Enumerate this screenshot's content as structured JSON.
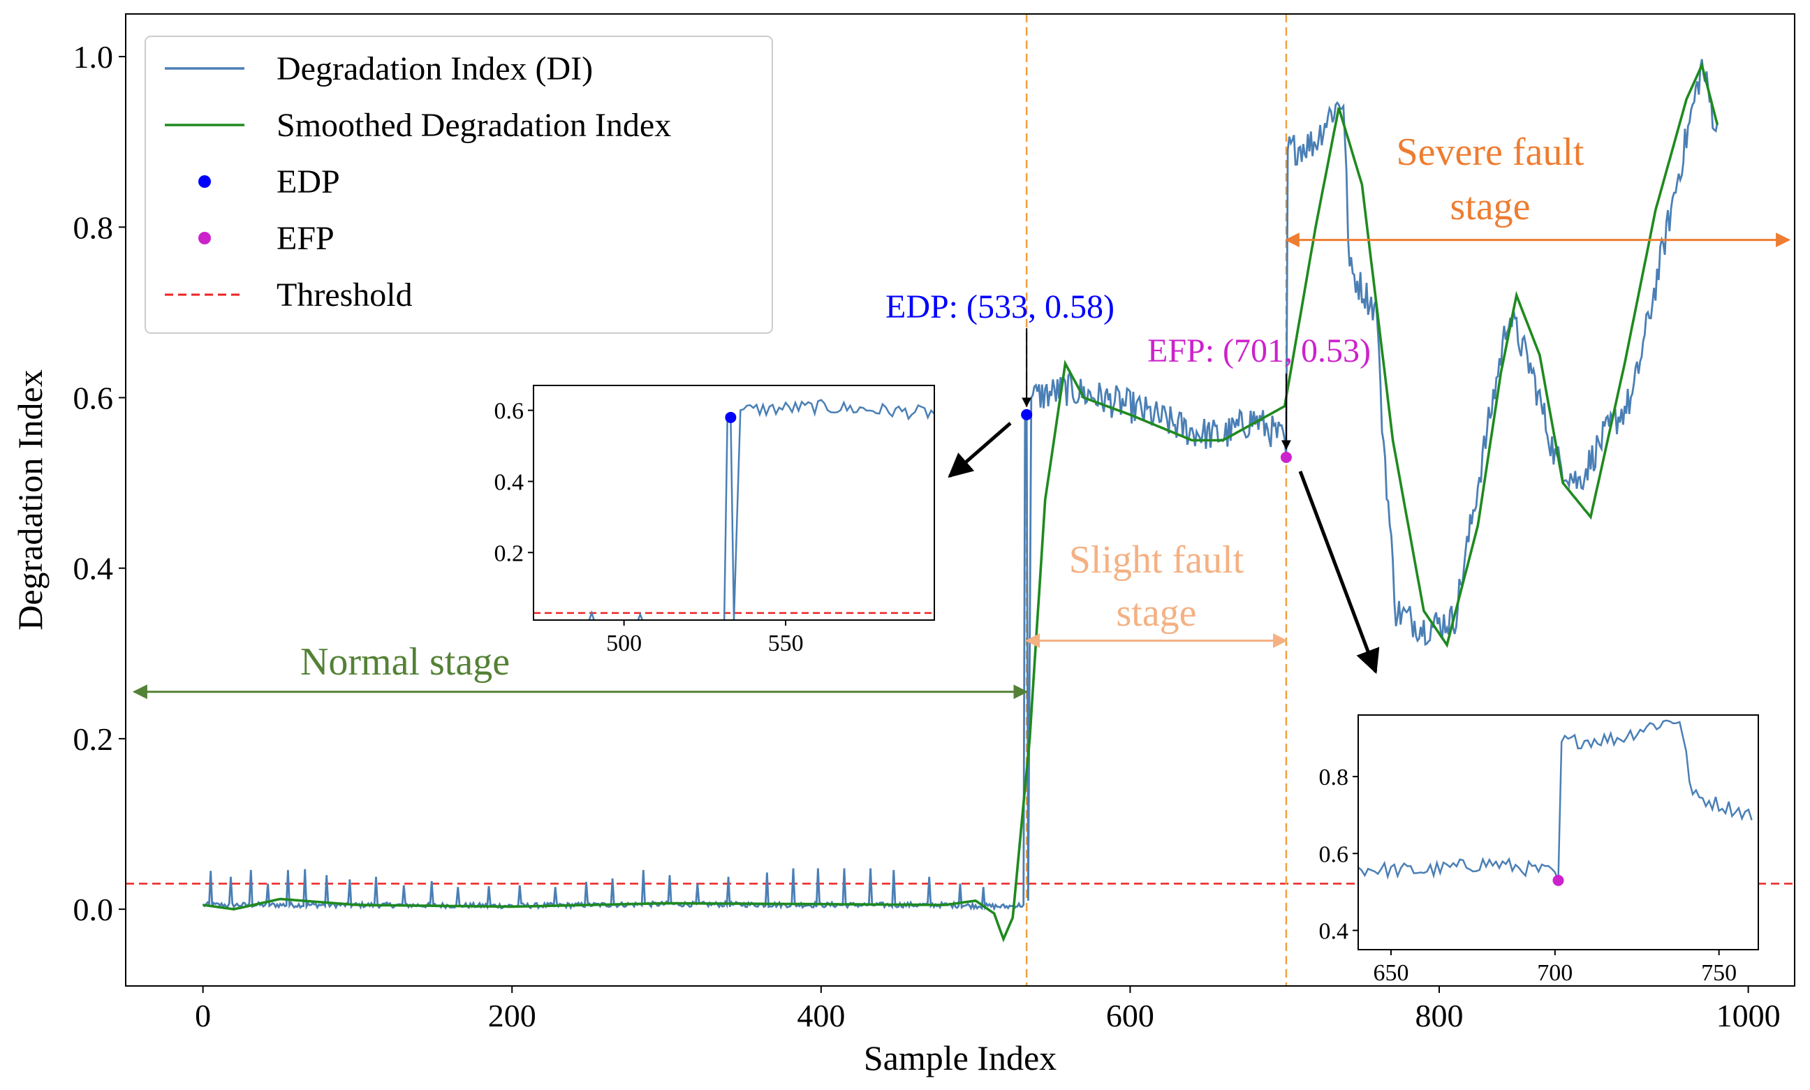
{
  "chart_data": {
    "type": "line",
    "xlabel": "Sample Index",
    "ylabel": "Degradation Index",
    "xlim": [
      -50,
      1030
    ],
    "ylim": [
      -0.09,
      1.05
    ],
    "xticks": [
      0,
      200,
      400,
      600,
      800,
      1000
    ],
    "yticks": [
      0.0,
      0.2,
      0.4,
      0.6,
      0.8,
      1.0
    ],
    "threshold": 0.03,
    "edp_x": 533,
    "efp_x": 701,
    "legend": {
      "position": "upper-left",
      "entries": [
        {
          "key": "di",
          "label": "Degradation Index (DI)",
          "color": "#4a7fb5",
          "kind": "line"
        },
        {
          "key": "smooth",
          "label": "Smoothed Degradation Index",
          "color": "#1f8a1f",
          "kind": "line"
        },
        {
          "key": "edp",
          "label": "EDP",
          "color": "#0000ff",
          "kind": "dot"
        },
        {
          "key": "efp",
          "label": "EFP",
          "color": "#cc22cc",
          "kind": "dot"
        },
        {
          "key": "threshold",
          "label": "Threshold",
          "color": "#ee2222",
          "kind": "dashed"
        }
      ]
    },
    "series": [
      {
        "name": "Degradation Index (DI)",
        "color": "#4a7fb5",
        "anchors": [
          [
            0,
            0.005
          ],
          [
            100,
            0.005
          ],
          [
            200,
            0.004
          ],
          [
            300,
            0.006
          ],
          [
            400,
            0.005
          ],
          [
            480,
            0.005
          ],
          [
            520,
            0.003
          ],
          [
            531,
            0.005
          ],
          [
            532,
            0.58
          ],
          [
            533,
            0.58
          ],
          [
            534,
            0.01
          ],
          [
            536,
            0.6
          ],
          [
            560,
            0.61
          ],
          [
            600,
            0.59
          ],
          [
            640,
            0.56
          ],
          [
            660,
            0.555
          ],
          [
            680,
            0.575
          ],
          [
            700,
            0.55
          ],
          [
            701,
            0.53
          ],
          [
            702,
            0.89
          ],
          [
            720,
            0.9
          ],
          [
            728,
            0.93
          ],
          [
            738,
            0.95
          ],
          [
            742,
            0.75
          ],
          [
            760,
            0.7
          ],
          [
            762,
            0.6
          ],
          [
            772,
            0.35
          ],
          [
            790,
            0.33
          ],
          [
            810,
            0.34
          ],
          [
            830,
            0.55
          ],
          [
            845,
            0.7
          ],
          [
            860,
            0.63
          ],
          [
            875,
            0.53
          ],
          [
            890,
            0.5
          ],
          [
            905,
            0.55
          ],
          [
            925,
            0.6
          ],
          [
            950,
            0.82
          ],
          [
            970,
            0.99
          ],
          [
            980,
            0.91
          ]
        ],
        "noise": 0.02,
        "spikes": [
          [
            5,
            0.045
          ],
          [
            18,
            0.038
          ],
          [
            31,
            0.046
          ],
          [
            42,
            0.03
          ],
          [
            55,
            0.046
          ],
          [
            66,
            0.047
          ],
          [
            80,
            0.04
          ],
          [
            95,
            0.035
          ],
          [
            112,
            0.038
          ],
          [
            130,
            0.028
          ],
          [
            148,
            0.033
          ],
          [
            165,
            0.026
          ],
          [
            185,
            0.027
          ],
          [
            205,
            0.028
          ],
          [
            228,
            0.026
          ],
          [
            248,
            0.032
          ],
          [
            265,
            0.036
          ],
          [
            285,
            0.046
          ],
          [
            302,
            0.04
          ],
          [
            320,
            0.03
          ],
          [
            340,
            0.038
          ],
          [
            365,
            0.043
          ],
          [
            382,
            0.048
          ],
          [
            398,
            0.048
          ],
          [
            415,
            0.048
          ],
          [
            432,
            0.048
          ],
          [
            447,
            0.046
          ],
          [
            470,
            0.038
          ],
          [
            490,
            0.03
          ],
          [
            505,
            0.026
          ]
        ]
      },
      {
        "name": "Smoothed Degradation Index",
        "color": "#1f8a1f",
        "anchors": [
          [
            0,
            0.005
          ],
          [
            20,
            0.0
          ],
          [
            50,
            0.012
          ],
          [
            100,
            0.005
          ],
          [
            200,
            0.003
          ],
          [
            300,
            0.007
          ],
          [
            400,
            0.006
          ],
          [
            480,
            0.005
          ],
          [
            500,
            0.01
          ],
          [
            512,
            -0.005
          ],
          [
            518,
            -0.035
          ],
          [
            524,
            -0.01
          ],
          [
            535,
            0.2
          ],
          [
            545,
            0.48
          ],
          [
            558,
            0.64
          ],
          [
            570,
            0.6
          ],
          [
            600,
            0.58
          ],
          [
            640,
            0.55
          ],
          [
            660,
            0.55
          ],
          [
            690,
            0.58
          ],
          [
            700,
            0.59
          ],
          [
            720,
            0.8
          ],
          [
            735,
            0.94
          ],
          [
            750,
            0.85
          ],
          [
            770,
            0.55
          ],
          [
            790,
            0.35
          ],
          [
            805,
            0.31
          ],
          [
            825,
            0.45
          ],
          [
            840,
            0.63
          ],
          [
            850,
            0.72
          ],
          [
            865,
            0.65
          ],
          [
            880,
            0.5
          ],
          [
            898,
            0.46
          ],
          [
            920,
            0.64
          ],
          [
            940,
            0.82
          ],
          [
            960,
            0.95
          ],
          [
            970,
            0.99
          ],
          [
            980,
            0.92
          ]
        ]
      }
    ],
    "points": [
      {
        "name": "EDP",
        "x": 533,
        "y": 0.58,
        "color": "#0000ff",
        "label": "EDP: (533, 0.58)"
      },
      {
        "name": "EFP",
        "x": 701,
        "y": 0.53,
        "color": "#cc22cc",
        "label": "EFP: (701, 0.53)"
      }
    ],
    "annotations": {
      "normal": "Normal stage",
      "slight_line1": "Slight fault",
      "slight_line2": "stage",
      "severe_line1": "Severe fault",
      "severe_line2": "stage"
    },
    "stage_spans": [
      {
        "key": "normal",
        "x0": -50,
        "x1": 533,
        "y": 0.255,
        "color": "#538135"
      },
      {
        "key": "slight",
        "x0": 533,
        "x1": 701,
        "y": 0.315,
        "color": "#f4b183"
      },
      {
        "key": "severe",
        "x0": 701,
        "x1": 1030,
        "y": 0.785,
        "color": "#ed7d31"
      }
    ],
    "insets": [
      {
        "key": "edp_inset",
        "xlim": [
          472,
          596
        ],
        "ylim": [
          0.01,
          0.67
        ],
        "xticks": [
          500,
          550
        ],
        "yticks": [
          0.2,
          0.4,
          0.6
        ],
        "xmin": 472,
        "xmax": 596,
        "point": "EDP"
      },
      {
        "key": "efp_inset",
        "xlim": [
          640,
          762
        ],
        "ylim": [
          0.35,
          0.96
        ],
        "xticks": [
          650,
          700,
          750
        ],
        "yticks": [
          0.4,
          0.6,
          0.8
        ],
        "xmin": 640,
        "xmax": 760,
        "point": "EFP"
      }
    ]
  }
}
